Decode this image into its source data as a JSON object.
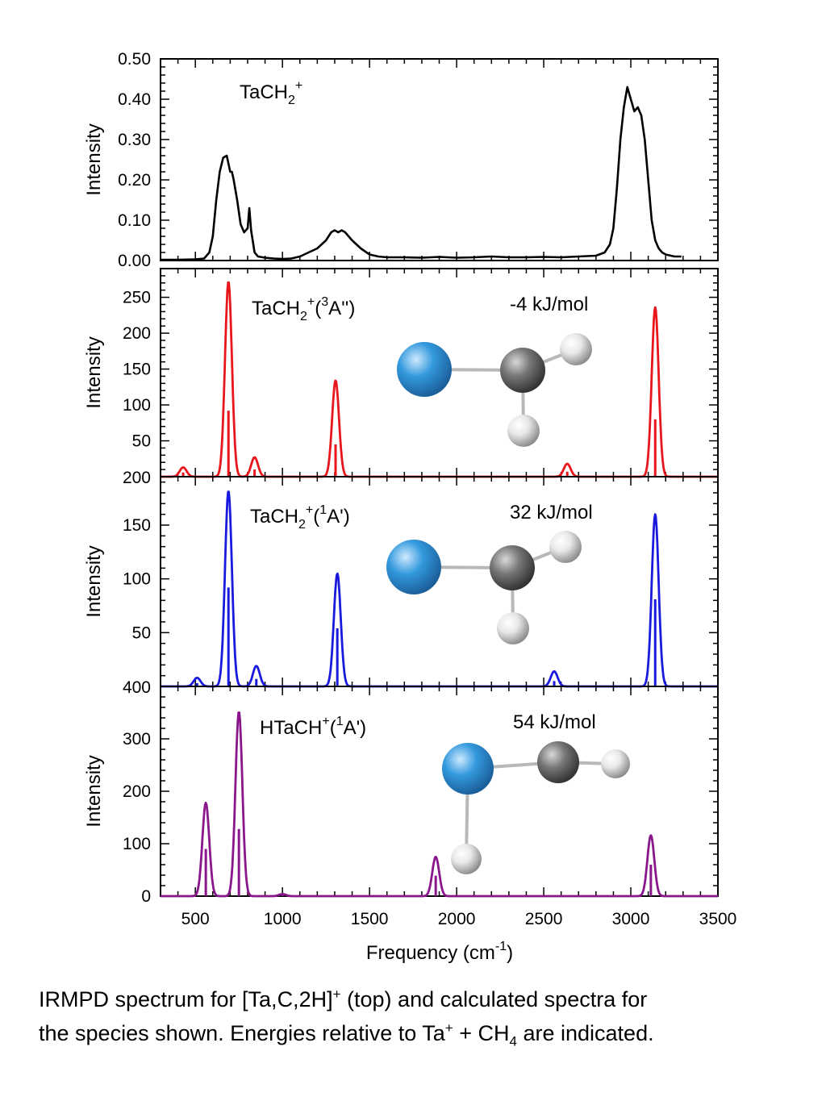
{
  "caption": {
    "line1_a": "IRMPD spectrum for [Ta,C,2H]",
    "line1_sup": "+",
    "line1_b": " (top) and calculated spectra for",
    "line2_a": "the species shown.   Energies relative to Ta",
    "line2_sup": "+",
    "line2_b": " + CH",
    "line2_sub": "4",
    "line2_c": " are indicated."
  },
  "colors": {
    "experiment": "#000000",
    "triplet": "#e8161a",
    "singlet": "#1a1adf",
    "htach": "#8a168c",
    "ta_atom": "#3399dd",
    "c_atom": "#777777",
    "h_atom": "#e8e8e8"
  },
  "chart_data": [
    {
      "type": "line",
      "panel": "experiment",
      "label": {
        "main": "TaCH",
        "sub": "2",
        "sup": "+",
        "tail": ""
      },
      "energy": "",
      "xlim": [
        300,
        3500
      ],
      "ylim": [
        0,
        0.5
      ],
      "ylabel": "Intensity",
      "yticks": [
        "0.00",
        "0.10",
        "0.20",
        "0.30",
        "0.40",
        "0.50"
      ],
      "series": [
        {
          "x": [
            300,
            400,
            500,
            550,
            580,
            600,
            620,
            640,
            660,
            680,
            700,
            710,
            720,
            740,
            760,
            780,
            800,
            810,
            820,
            840,
            860,
            900,
            950,
            1000,
            1050,
            1100,
            1150,
            1200,
            1250,
            1280,
            1300,
            1320,
            1340,
            1360,
            1380,
            1400,
            1450,
            1500,
            1550,
            1600,
            1700,
            1800,
            1900,
            2000,
            2100,
            2200,
            2300,
            2400,
            2500,
            2600,
            2700,
            2800,
            2850,
            2880,
            2900,
            2920,
            2940,
            2960,
            2980,
            3000,
            3020,
            3040,
            3060,
            3080,
            3100,
            3120,
            3140,
            3160,
            3180,
            3200,
            3250,
            3290
          ],
          "y": [
            0.002,
            0.002,
            0.003,
            0.005,
            0.02,
            0.06,
            0.15,
            0.22,
            0.255,
            0.26,
            0.22,
            0.22,
            0.2,
            0.15,
            0.09,
            0.07,
            0.08,
            0.13,
            0.075,
            0.02,
            0.01,
            0.007,
            0.005,
            0.004,
            0.005,
            0.01,
            0.02,
            0.03,
            0.05,
            0.07,
            0.075,
            0.07,
            0.075,
            0.07,
            0.06,
            0.05,
            0.03,
            0.015,
            0.01,
            0.008,
            0.008,
            0.007,
            0.009,
            0.007,
            0.008,
            0.01,
            0.008,
            0.008,
            0.009,
            0.008,
            0.01,
            0.012,
            0.02,
            0.04,
            0.08,
            0.18,
            0.3,
            0.38,
            0.43,
            0.4,
            0.37,
            0.38,
            0.36,
            0.3,
            0.2,
            0.1,
            0.05,
            0.03,
            0.02,
            0.015,
            0.01,
            0.01
          ]
        }
      ]
    },
    {
      "type": "line",
      "panel": "triplet",
      "label": {
        "main": "TaCH",
        "sub": "2",
        "sup": "+",
        "tail": "(",
        "sup2": "3",
        "tail2": "A'')"
      },
      "energy": "-4 kJ/mol",
      "xlim": [
        300,
        3500
      ],
      "ylim": [
        0,
        290
      ],
      "ylabel": "Intensity",
      "yticks": [
        "50",
        "100",
        "150",
        "200",
        "250"
      ],
      "bottom_label": "200",
      "peaks": [
        {
          "x": 430,
          "height": 13,
          "stick": 6
        },
        {
          "x": 690,
          "height": 272,
          "stick": 92
        },
        {
          "x": 840,
          "height": 27,
          "stick": 10
        },
        {
          "x": 1305,
          "height": 134,
          "stick": 45
        },
        {
          "x": 2635,
          "height": 18,
          "stick": 7
        },
        {
          "x": 3140,
          "height": 236,
          "stick": 80
        }
      ],
      "peak_width": 28
    },
    {
      "type": "line",
      "panel": "singlet",
      "label": {
        "main": "TaCH",
        "sub": "2",
        "sup": "+",
        "tail": "(",
        "sup2": "1",
        "tail2": "A')"
      },
      "energy": "32 kJ/mol",
      "xlim": [
        300,
        3500
      ],
      "ylim": [
        0,
        195
      ],
      "ylabel": "Intensity",
      "yticks": [
        "50",
        "100",
        "150"
      ],
      "bottom_label": "400",
      "peaks": [
        {
          "x": 510,
          "height": 8,
          "stick": 3
        },
        {
          "x": 690,
          "height": 182,
          "stick": 92
        },
        {
          "x": 850,
          "height": 19,
          "stick": 7
        },
        {
          "x": 1315,
          "height": 105,
          "stick": 54
        },
        {
          "x": 2560,
          "height": 14,
          "stick": 5
        },
        {
          "x": 3140,
          "height": 160,
          "stick": 81
        }
      ],
      "peak_width": 28
    },
    {
      "type": "line",
      "panel": "htach",
      "label": {
        "main": "HTaCH",
        "sub": "",
        "sup": "+",
        "tail": "(",
        "sup2": "1",
        "tail2": "A')"
      },
      "energy": "54 kJ/mol",
      "xlim": [
        300,
        3500
      ],
      "ylim": [
        0,
        400
      ],
      "ylabel": "Intensity",
      "yticks": [
        "0",
        "100",
        "200",
        "300"
      ],
      "peaks": [
        {
          "x": 560,
          "height": 178,
          "stick": 90
        },
        {
          "x": 750,
          "height": 352,
          "stick": 128
        },
        {
          "x": 1000,
          "height": 4,
          "stick": 2
        },
        {
          "x": 1880,
          "height": 75,
          "stick": 39
        },
        {
          "x": 3115,
          "height": 116,
          "stick": 60
        }
      ],
      "peak_width": 28
    }
  ],
  "x_axis": {
    "label": "Frequency (cm",
    "label_sup": "-1",
    "label_close": ")",
    "ticks": [
      500,
      1000,
      1500,
      2000,
      2500,
      3000,
      3500
    ]
  }
}
